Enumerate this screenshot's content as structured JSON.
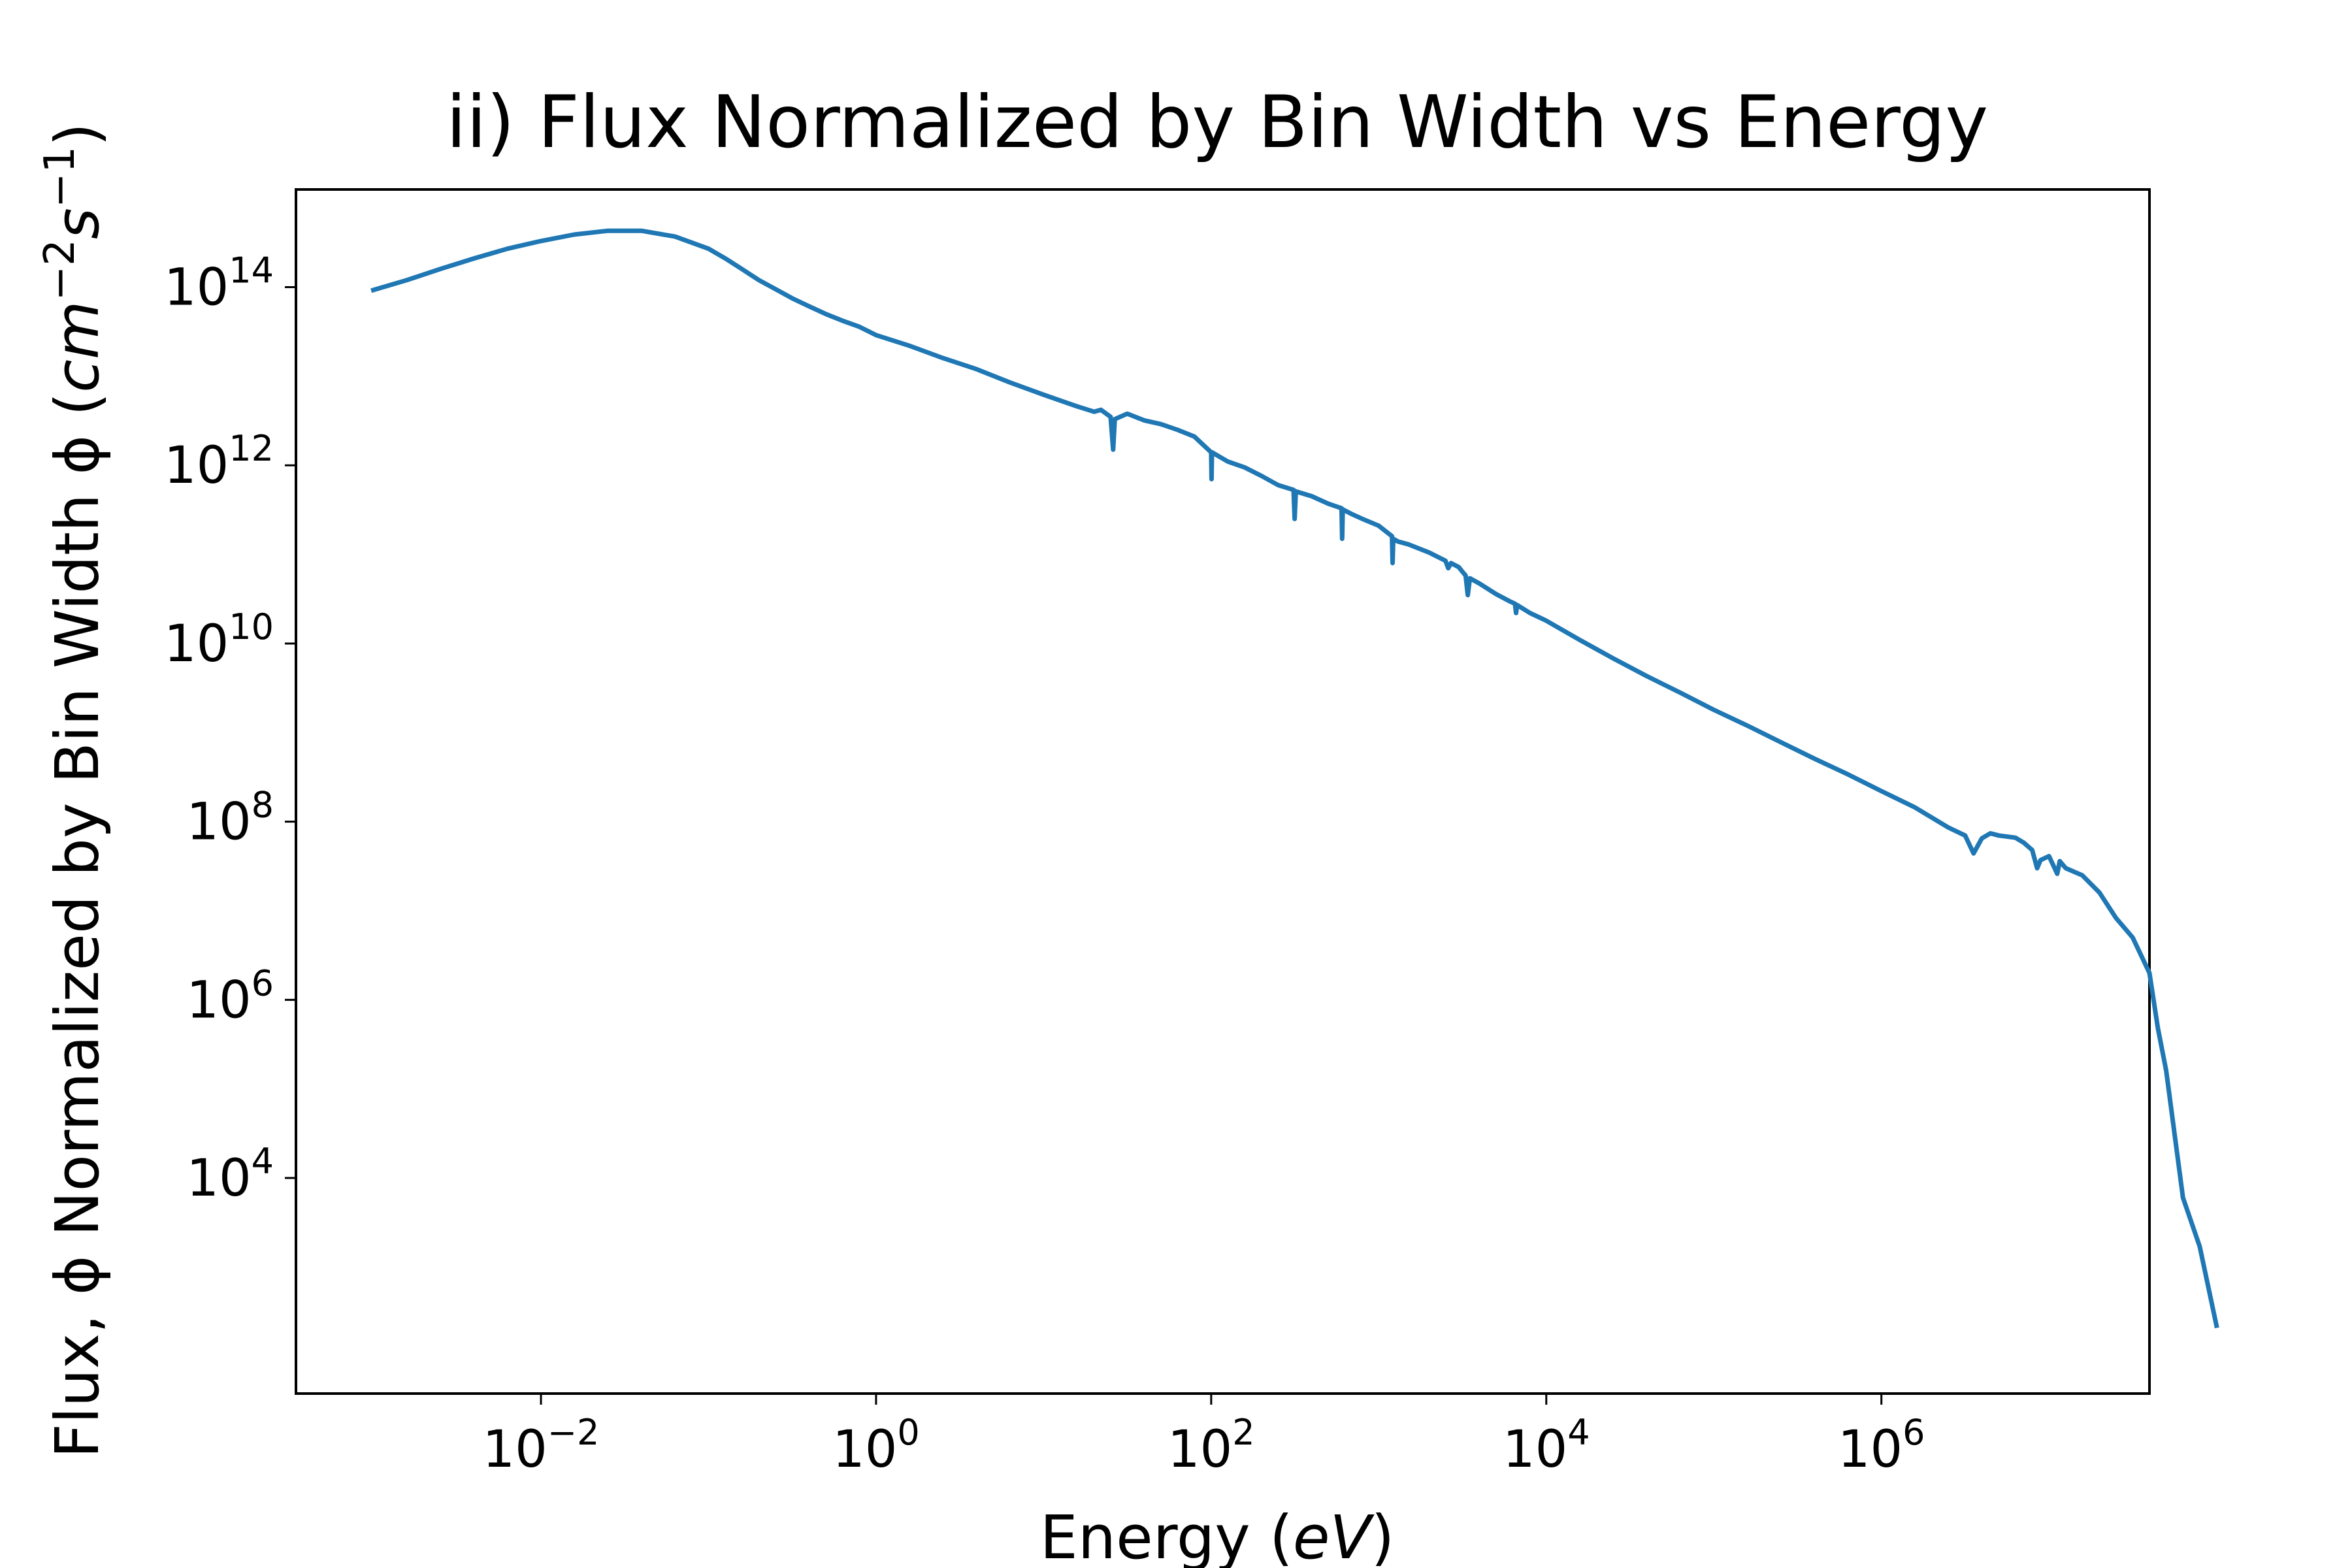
{
  "chart_data": {
    "type": "line",
    "title": "ii) Flux Normalized by Bin Width vs Energy",
    "xlabel": {
      "main": "Energy (",
      "unit": "eV",
      "close": ")"
    },
    "ylabel": {
      "main": "Flux, ϕ Normalized by Bin Width ϕ (",
      "unit1": "cm",
      "exp1": "−2",
      "unit2": "s",
      "exp2": "−1",
      "close": ")"
    },
    "x_scale": "log",
    "y_scale": "log",
    "xlim": [
      0.000345,
      39800000
    ],
    "ylim": [
      38.0,
      1250000000000000.0
    ],
    "x_ticks": [
      {
        "value": 0.01,
        "base": "10",
        "exp": "−2"
      },
      {
        "value": 1,
        "base": "10",
        "exp": "0"
      },
      {
        "value": 100,
        "base": "10",
        "exp": "2"
      },
      {
        "value": 10000,
        "base": "10",
        "exp": "4"
      },
      {
        "value": 1000000,
        "base": "10",
        "exp": "6"
      }
    ],
    "y_ticks": [
      {
        "value": 10000.0,
        "base": "10",
        "exp": "4"
      },
      {
        "value": 1000000.0,
        "base": "10",
        "exp": "6"
      },
      {
        "value": 100000000.0,
        "base": "10",
        "exp": "8"
      },
      {
        "value": 10000000000.0,
        "base": "10",
        "exp": "10"
      },
      {
        "value": 1000000000000.0,
        "base": "10",
        "exp": "12"
      },
      {
        "value": 100000000000000.0,
        "base": "10",
        "exp": "14"
      }
    ],
    "grid": false,
    "legend": "none",
    "series": [
      {
        "color": "#1f77b4",
        "points": [
          [
            0.001,
            93000000000000.0
          ],
          [
            0.00158,
            120000000000000.0
          ],
          [
            0.00251,
            160000000000000.0
          ],
          [
            0.00398,
            210000000000000.0
          ],
          [
            0.00631,
            270000000000000.0
          ],
          [
            0.01,
            330000000000000.0
          ],
          [
            0.0158,
            390000000000000.0
          ],
          [
            0.0251,
            430000000000000.0
          ],
          [
            0.0398,
            430000000000000.0
          ],
          [
            0.0631,
            370000000000000.0
          ],
          [
            0.1,
            270000000000000.0
          ],
          [
            0.126,
            210000000000000.0
          ],
          [
            0.158,
            160000000000000.0
          ],
          [
            0.2,
            120000000000000.0
          ],
          [
            0.251,
            95000000000000.0
          ],
          [
            0.316,
            75000000000000.0
          ],
          [
            0.398,
            61000000000000.0
          ],
          [
            0.501,
            50000000000000.0
          ],
          [
            0.631,
            42000000000000.0
          ],
          [
            0.794,
            36000000000000.0
          ],
          [
            1.0,
            29000000000000.0
          ],
          [
            1.58,
            22000000000000.0
          ],
          [
            2.51,
            16000000000000.0
          ],
          [
            3.98,
            12000000000000.0
          ],
          [
            6.31,
            8500000000000.0
          ],
          [
            10.0,
            6200000000000.0
          ],
          [
            15.8,
            4600000000000.0
          ],
          [
            20.0,
            4000000000000.0
          ],
          [
            22.0,
            4200000000000.0
          ],
          [
            25.1,
            3500000000000.0
          ],
          [
            26.0,
            1500000000000.0
          ],
          [
            26.6,
            3300000000000.0
          ],
          [
            31.6,
            3800000000000.0
          ],
          [
            39.8,
            3200000000000.0
          ],
          [
            50.1,
            2900000000000.0
          ],
          [
            63.1,
            2500000000000.0
          ],
          [
            79.4,
            2100000000000.0
          ],
          [
            100,
            1400000000000.0
          ],
          [
            100.5,
            700000000000.0
          ],
          [
            101,
            1400000000000.0
          ],
          [
            126,
            1100000000000.0
          ],
          [
            158,
            950000000000.0
          ],
          [
            200,
            760000000000.0
          ],
          [
            251,
            600000000000.0
          ],
          [
            310,
            530000000000.0
          ],
          [
            315,
            250000000000.0
          ],
          [
            320,
            510000000000.0
          ],
          [
            398,
            450000000000.0
          ],
          [
            501,
            370000000000.0
          ],
          [
            600,
            330000000000.0
          ],
          [
            605,
            150000000000.0
          ],
          [
            610,
            320000000000.0
          ],
          [
            700,
            280000000000.0
          ],
          [
            800,
            250000000000.0
          ],
          [
            1000,
            210000000000.0
          ],
          [
            1200,
            160000000000.0
          ],
          [
            1210,
            80000000000.0
          ],
          [
            1220,
            150000000000.0
          ],
          [
            1300,
            140000000000.0
          ],
          [
            1500,
            130000000000.0
          ],
          [
            2000,
            105000000000.0
          ],
          [
            2500,
            85000000000.0
          ],
          [
            2600,
            70000000000.0
          ],
          [
            2700,
            80000000000.0
          ],
          [
            3000,
            72000000000.0
          ],
          [
            3200,
            62000000000.0
          ],
          [
            3300,
            58000000000.0
          ],
          [
            3400,
            35000000000.0
          ],
          [
            3500,
            54000000000.0
          ],
          [
            4000,
            47000000000.0
          ],
          [
            5000,
            36000000000.0
          ],
          [
            6000,
            30000000000.0
          ],
          [
            6500,
            28000000000.0
          ],
          [
            6600,
            22000000000.0
          ],
          [
            6700,
            27000000000.0
          ],
          [
            8000,
            22000000000.0
          ],
          [
            10000,
            18000000000.0
          ],
          [
            15800,
            11000000000.0
          ],
          [
            25100,
            6800000000.0
          ],
          [
            39800,
            4300000000.0
          ],
          [
            63100,
            2800000000.0
          ],
          [
            100000,
            1800000000.0
          ],
          [
            158000,
            1200000000.0
          ],
          [
            251000,
            780000000.0
          ],
          [
            398000,
            510000000.0
          ],
          [
            631000,
            340000000.0
          ],
          [
            1000000,
            220000000.0
          ],
          [
            1580000,
            145000000.0
          ],
          [
            2510000,
            86000000.0
          ],
          [
            3160000,
            70000000.0
          ],
          [
            3550000,
            44000000.0
          ],
          [
            3980000,
            65000000.0
          ],
          [
            4470000,
            74000000.0
          ],
          [
            5010000,
            70000000.0
          ],
          [
            6310000,
            66000000.0
          ],
          [
            7080000,
            58000000.0
          ],
          [
            7940000,
            48000000.0
          ],
          [
            8500000,
            30000000.0
          ],
          [
            8910000,
            37000000.0
          ],
          [
            10000000,
            41000000.0
          ],
          [
            11200000,
            26000000.0
          ],
          [
            11600000,
            36000000.0
          ],
          [
            12600000,
            30000000.0
          ],
          [
            15800000,
            25000000.0
          ],
          [
            20000000,
            16000000.0
          ],
          [
            25100000,
            8300000.0
          ],
          [
            31600000,
            5000000.0
          ],
          [
            39800000,
            2000000.0
          ],
          [
            44700000,
            480000.0
          ],
          [
            50100000,
            160000.0
          ],
          [
            63100000,
            6000.0
          ],
          [
            79400000,
            1700.0
          ],
          [
            100000000,
            220.0
          ]
        ]
      }
    ]
  }
}
